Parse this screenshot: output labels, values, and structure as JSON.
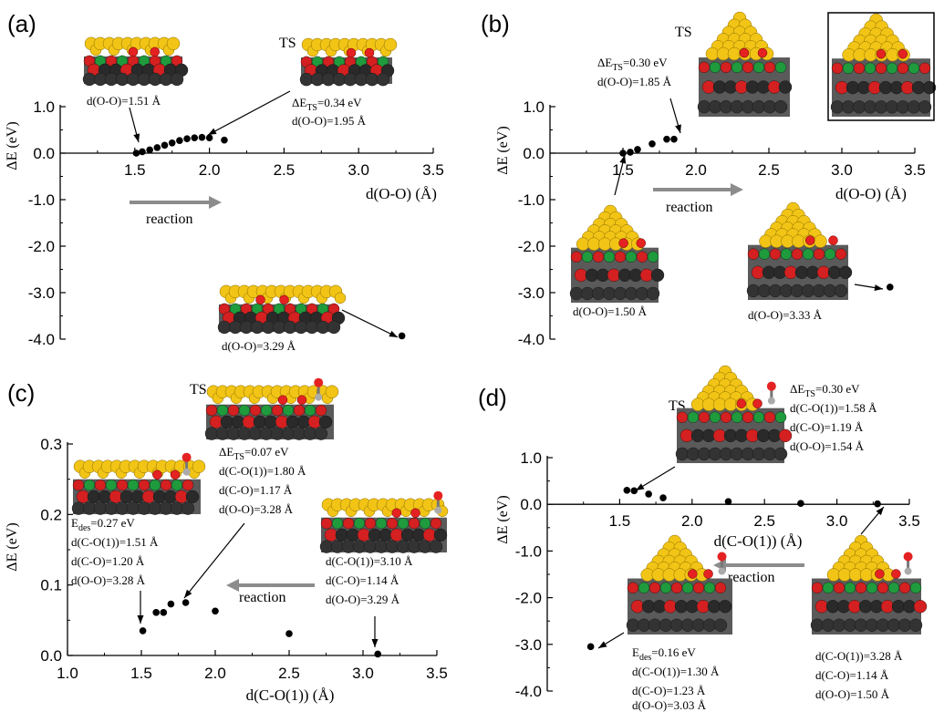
{
  "chart_data": [
    {
      "panel": "(a)",
      "type": "scatter",
      "xlabel": "d(O-O) (Å)",
      "ylabel": "ΔE (eV)",
      "xlim": [
        1.0,
        3.5
      ],
      "ylim": [
        -4.0,
        1.0
      ],
      "xticks": [
        "1.5",
        "2.0",
        "2.5",
        "3.0",
        "3.5"
      ],
      "yticks": [
        "1.0",
        "0.0",
        "-1.0",
        "-2.0",
        "-3.0",
        "-4.0"
      ],
      "x": [
        1.51,
        1.55,
        1.6,
        1.65,
        1.7,
        1.75,
        1.8,
        1.85,
        1.9,
        1.95,
        2.0,
        2.1,
        3.29
      ],
      "y": [
        0.0,
        0.03,
        0.07,
        0.12,
        0.17,
        0.22,
        0.27,
        0.31,
        0.33,
        0.34,
        0.33,
        0.28,
        -3.93
      ],
      "annotations": [
        "d(O-O)=1.51 Å",
        "TS",
        "ΔETS=0.34 eV",
        "d(O-O)=1.95 Å",
        "d(O-O)=3.29 Å"
      ],
      "arrow_label": "reaction"
    },
    {
      "panel": "(b)",
      "type": "scatter",
      "xlabel": "d(O-O) (Å)",
      "ylabel": "ΔE (eV)",
      "xlim": [
        1.0,
        3.5
      ],
      "ylim": [
        -4.0,
        1.0
      ],
      "xticks": [
        "1.5",
        "2.0",
        "2.5",
        "3.0",
        "3.5"
      ],
      "yticks": [
        "1.0",
        "0.0",
        "-1.0",
        "-2.0",
        "-3.0",
        "-4.0"
      ],
      "x": [
        1.5,
        1.55,
        1.6,
        1.7,
        1.8,
        1.85,
        3.33
      ],
      "y": [
        0.0,
        0.02,
        0.08,
        0.2,
        0.3,
        0.3,
        -2.88
      ],
      "annotations": [
        "TS",
        "ΔETS=0.30 eV",
        "d(O-O)=1.85 Å",
        "d(O-O)=1.50 Å",
        "d(O-O)=3.33 Å"
      ],
      "arrow_label": "reaction"
    },
    {
      "panel": "(c)",
      "type": "scatter",
      "xlabel": "d(C-O(1)) (Å)",
      "ylabel": "ΔE (eV)",
      "xlim": [
        1.0,
        3.5
      ],
      "ylim": [
        0.0,
        0.3
      ],
      "xticks": [
        "1.0",
        "1.5",
        "2.0",
        "2.5",
        "3.0",
        "3.5"
      ],
      "yticks": [
        "0.3",
        "0.2",
        "0.1",
        "0.0"
      ],
      "x": [
        1.51,
        1.6,
        1.65,
        1.7,
        1.8,
        2.0,
        2.5,
        3.1
      ],
      "y": [
        0.035,
        0.061,
        0.061,
        0.073,
        0.075,
        0.063,
        0.031,
        0.002
      ],
      "annotations": [
        "TS",
        "ΔETS=0.07 eV",
        "d(C-O(1))=1.80 Å",
        "d(C-O)=1.17 Å",
        "d(O-O)=3.28 Å",
        "Edes=0.27 eV",
        "d(C-O(1))=1.51 Å",
        "d(C-O)=1.20 Å",
        "d(O-O)=3.28 Å",
        "d(C-O(1))=3.10 Å",
        "d(C-O)=1.14 Å",
        "d(O-O)=3.29 Å"
      ],
      "arrow_label": "reaction"
    },
    {
      "panel": "(d)",
      "type": "scatter",
      "xlabel": "d(C-O(1)) (Å)",
      "ylabel": "ΔE (eV)",
      "xlim": [
        1.0,
        3.5
      ],
      "ylim": [
        -4.0,
        1.0
      ],
      "xticks": [
        "1.5",
        "2.0",
        "2.5",
        "3.0",
        "3.5"
      ],
      "yticks": [
        "1.0",
        "0.0",
        "-1.0",
        "-2.0",
        "-3.0",
        "-4.0"
      ],
      "x": [
        1.3,
        1.55,
        1.6,
        1.7,
        1.8,
        2.25,
        2.75,
        3.28
      ],
      "y": [
        -3.05,
        0.3,
        0.29,
        0.22,
        0.14,
        0.06,
        0.02,
        0.01
      ],
      "annotations": [
        "TS",
        "ΔETS=0.30 eV",
        "d(C-O(1))=1.58 Å",
        "d(C-O)=1.19 Å",
        "d(O-O)=1.54 Å",
        "Edes=0.16 eV",
        "d(C-O(1))=1.30 Å",
        "d(C-O)=1.23 Å",
        "d(O-O)=3.03 Å",
        "d(C-O(1))=3.28 Å",
        "d(C-O)=1.14 Å",
        "d(O-O)=1.50 Å"
      ],
      "arrow_label": "reaction"
    }
  ],
  "colors": {
    "gold": "#f2c416",
    "red": "#d42020",
    "green": "#1f9a3c",
    "gray": "#3c3c3c",
    "arrow_gray": "#8c8c8c"
  }
}
